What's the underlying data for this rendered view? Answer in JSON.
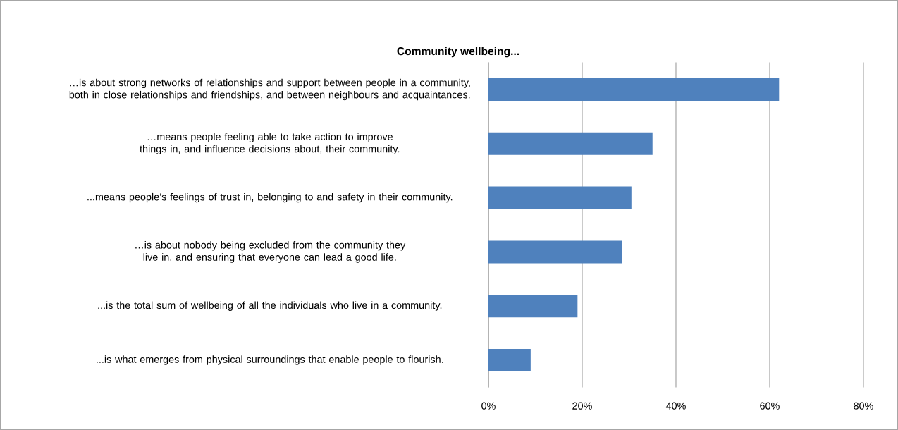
{
  "chart_data": {
    "type": "bar",
    "orientation": "horizontal",
    "title": "Community wellbeing...",
    "categories": [
      "…is about strong networks of relationships and support between people in a community, both in close relationships and friendships, and between neighbours and acquaintances.",
      "…means people feeling able to take action to improve things in, and influence decisions about, their community.",
      "...means people’s feelings of trust in, belonging to and safety in their community.",
      "…is about nobody being excluded from the community they live in, and ensuring that everyone can lead a good life.",
      "...is the total sum of wellbeing of all the individuals who live in a community.",
      "...is what emerges from physical surroundings that enable people to flourish."
    ],
    "values": [
      62,
      35,
      30.5,
      28.5,
      19,
      9
    ],
    "color": "#4f81bd",
    "xlim": [
      0,
      80
    ],
    "xticks": [
      {
        "value": 0,
        "label": "0%"
      },
      {
        "value": 20,
        "label": "20%"
      },
      {
        "value": 40,
        "label": "40%"
      },
      {
        "value": 60,
        "label": "60%"
      },
      {
        "value": 80,
        "label": "80%"
      }
    ],
    "grid": "x"
  }
}
